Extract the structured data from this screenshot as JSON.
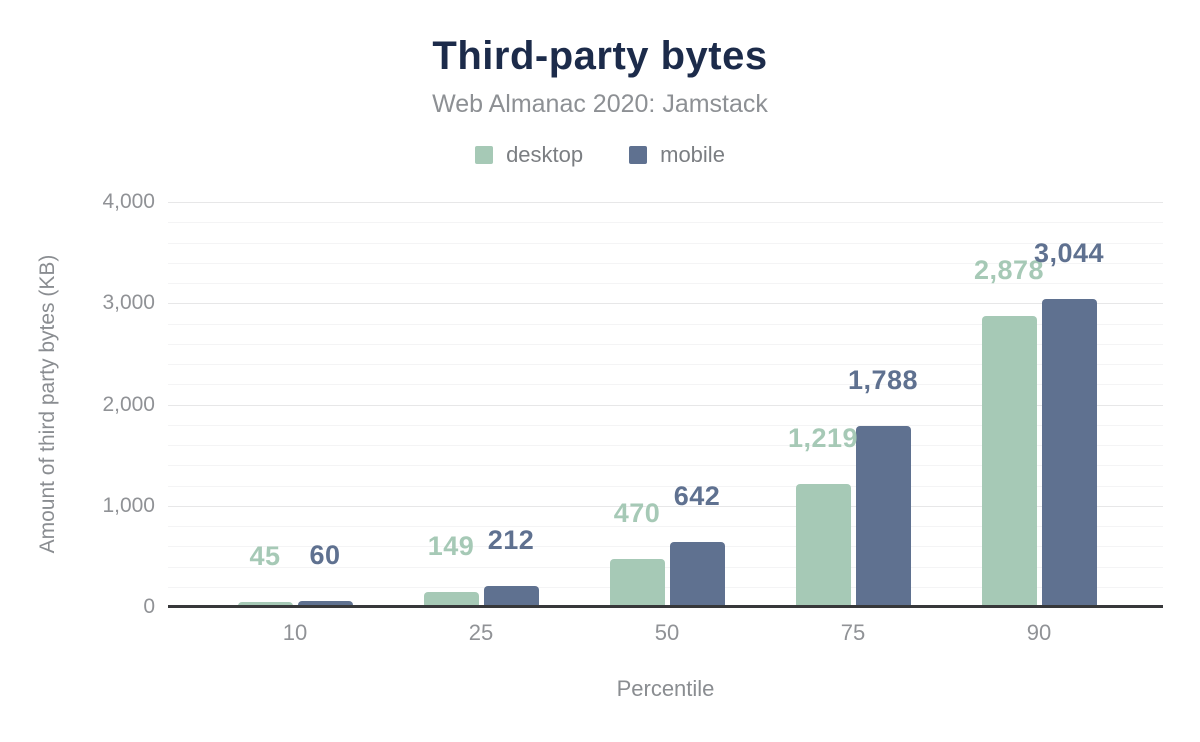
{
  "chart_data": {
    "type": "bar",
    "title": "Third-party bytes",
    "subtitle": "Web Almanac 2020: Jamstack",
    "xlabel": "Percentile",
    "ylabel": "Amount of third party bytes (KB)",
    "categories": [
      "10",
      "25",
      "50",
      "75",
      "90"
    ],
    "series": [
      {
        "name": "desktop",
        "color": "#a6c9b6",
        "values": [
          45,
          149,
          470,
          1219,
          2878
        ],
        "value_labels": [
          "45",
          "149",
          "470",
          "1,219",
          "2,878"
        ]
      },
      {
        "name": "mobile",
        "color": "#5f7190",
        "values": [
          60,
          212,
          642,
          1788,
          3044
        ],
        "value_labels": [
          "60",
          "212",
          "642",
          "1,788",
          "3,044"
        ]
      }
    ],
    "y_axis": {
      "min": 0,
      "max": 4000,
      "major_step": 1000,
      "minor_step": 200,
      "tick_labels": [
        "0",
        "1,000",
        "2,000",
        "3,000",
        "4,000"
      ]
    },
    "legend_position": "top",
    "grid": true
  },
  "colors": {
    "title": "#1c2b4a",
    "subtitle": "#8d9094",
    "legend_text": "#7b7e82",
    "tick_text": "#909296",
    "axis_title_text": "#8a8d91",
    "axis_line": "#37383a",
    "background": "#ffffff"
  }
}
